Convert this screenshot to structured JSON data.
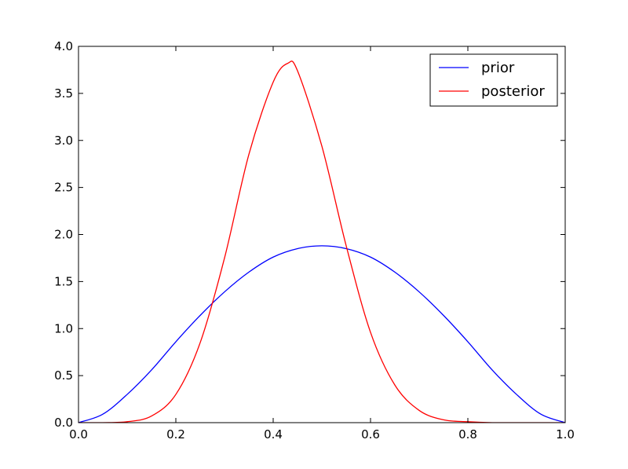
{
  "chart_data": {
    "type": "line",
    "title": "",
    "xlabel": "",
    "ylabel": "",
    "xlim": [
      0.0,
      1.0
    ],
    "ylim": [
      0.0,
      4.0
    ],
    "x_ticks": [
      "0.0",
      "0.2",
      "0.4",
      "0.6",
      "0.8",
      "1.0"
    ],
    "y_ticks": [
      "0.0",
      "0.5",
      "1.0",
      "1.5",
      "2.0",
      "2.5",
      "3.0",
      "3.5",
      "4.0"
    ],
    "grid": false,
    "legend_position": "top-right",
    "series": [
      {
        "name": "prior",
        "color": "#0000ff",
        "x": [
          0.0,
          0.05,
          0.1,
          0.15,
          0.2,
          0.25,
          0.3,
          0.35,
          0.4,
          0.45,
          0.5,
          0.55,
          0.6,
          0.65,
          0.7,
          0.75,
          0.8,
          0.85,
          0.9,
          0.95,
          1.0
        ],
        "y": [
          0.0,
          0.09,
          0.3,
          0.56,
          0.86,
          1.14,
          1.39,
          1.6,
          1.76,
          1.85,
          1.88,
          1.85,
          1.76,
          1.6,
          1.39,
          1.14,
          0.86,
          0.56,
          0.3,
          0.09,
          0.0
        ]
      },
      {
        "name": "posterior",
        "color": "#ff0000",
        "x": [
          0.0,
          0.05,
          0.1,
          0.15,
          0.2,
          0.25,
          0.3,
          0.35,
          0.4,
          0.43,
          0.45,
          0.5,
          0.55,
          0.6,
          0.65,
          0.7,
          0.75,
          0.8,
          0.85,
          0.9,
          0.95,
          1.0
        ],
        "y": [
          0.0,
          0.0,
          0.01,
          0.07,
          0.3,
          0.85,
          1.75,
          2.85,
          3.62,
          3.82,
          3.74,
          2.94,
          1.88,
          0.96,
          0.4,
          0.13,
          0.03,
          0.01,
          0.0,
          0.0,
          0.0,
          0.0
        ]
      }
    ]
  }
}
